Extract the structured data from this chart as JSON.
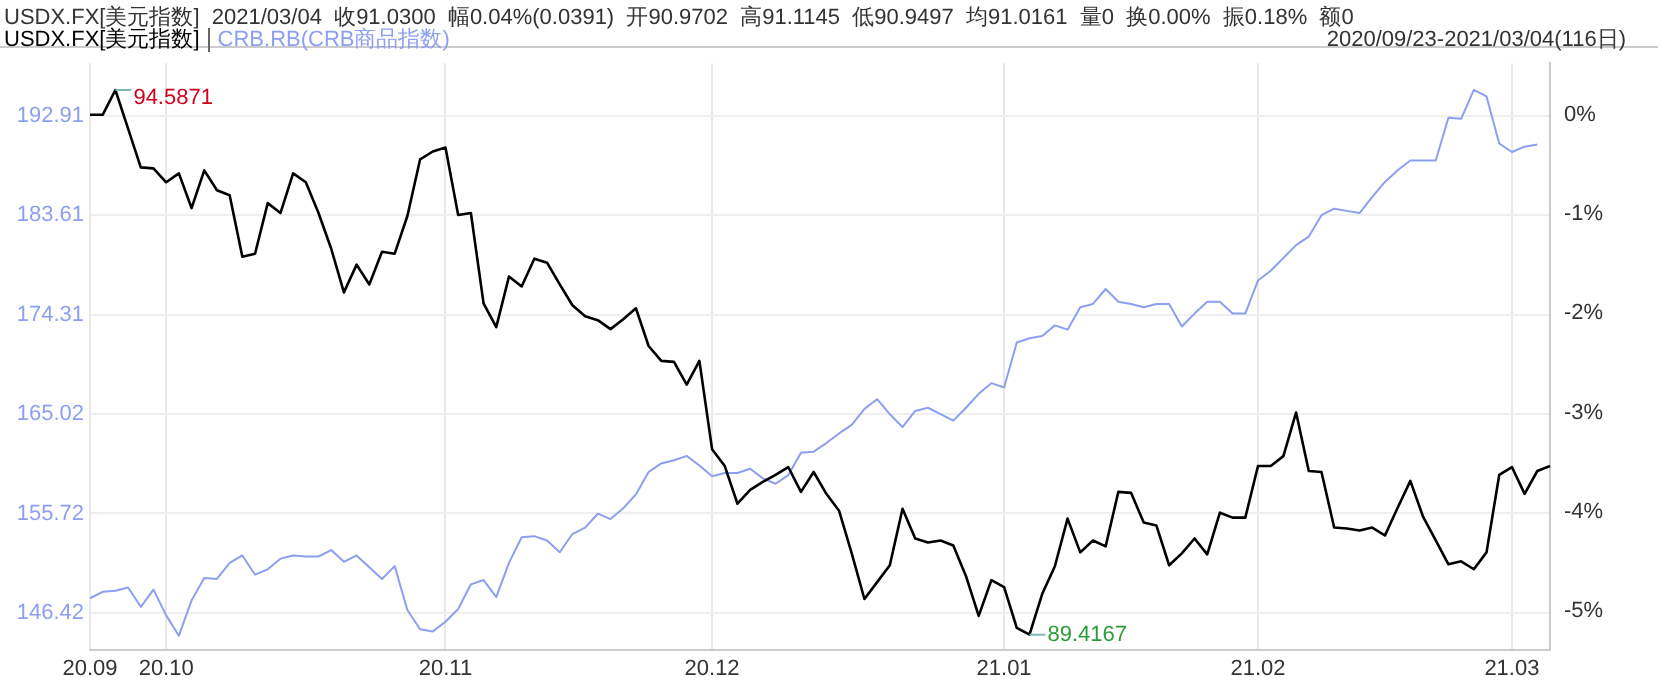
{
  "chart_data": {
    "type": "line",
    "title": "USDX.FX[美元指数]  2021/03/04  收91.0300  幅0.04%(0.0391)  开90.9702  高91.1145  低90.9497  均91.0161  量0  换0.00%  振0.18%  额0",
    "subtitle": "2020/09/23-2021/03/04(116日)",
    "annotations": [
      "94.5871",
      "89.4167"
    ],
    "categories": [
      "20.09",
      null,
      null,
      null,
      null,
      null,
      "20.10",
      null,
      null,
      null,
      null,
      null,
      null,
      null,
      null,
      null,
      null,
      null,
      null,
      null,
      null,
      null,
      null,
      null,
      null,
      null,
      null,
      null,
      "20.11",
      null,
      null,
      null,
      null,
      null,
      null,
      null,
      null,
      null,
      null,
      null,
      null,
      null,
      null,
      null,
      null,
      null,
      null,
      null,
      null,
      "20.12",
      null,
      null,
      null,
      null,
      null,
      null,
      null,
      null,
      null,
      null,
      null,
      null,
      null,
      null,
      null,
      null,
      null,
      null,
      null,
      null,
      null,
      null,
      "21.01",
      null,
      null,
      null,
      null,
      null,
      null,
      null,
      null,
      null,
      null,
      null,
      null,
      null,
      null,
      null,
      null,
      null,
      null,
      null,
      "21.02",
      null,
      null,
      null,
      null,
      null,
      null,
      null,
      null,
      null,
      null,
      null,
      null,
      null,
      null,
      null,
      null,
      null,
      null,
      null,
      "21.03",
      null,
      null,
      null
    ],
    "series": [
      {
        "name": "USDX.FX[美元指数]",
        "color": "#000000",
        "axis": "y2",
        "values": [
          0,
          0,
          0.25,
          -0.14,
          -0.53,
          -0.54,
          -0.68,
          -0.59,
          -0.94,
          -0.56,
          -0.76,
          -0.81,
          -1.43,
          -1.4,
          -0.89,
          -0.99,
          -0.59,
          -0.68,
          -0.99,
          -1.35,
          -1.79,
          -1.51,
          -1.71,
          -1.38,
          -1.4,
          -1.02,
          -0.45,
          -0.37,
          -0.33,
          -1.01,
          -0.99,
          -1.9,
          -2.14,
          -1.63,
          -1.73,
          -1.45,
          -1.49,
          -1.71,
          -1.92,
          -2.03,
          -2.07,
          -2.16,
          -2.06,
          -1.95,
          -2.33,
          -2.48,
          -2.49,
          -2.72,
          -2.48,
          -3.37,
          -3.54,
          -3.92,
          -3.78,
          -3.7,
          -3.63,
          -3.55,
          -3.8,
          -3.6,
          -3.82,
          -3.99,
          -4.42,
          -4.88,
          -4.71,
          -4.54,
          -3.97,
          -4.27,
          -4.31,
          -4.29,
          -4.34,
          -4.65,
          -5.05,
          -4.69,
          -4.76,
          -5.17,
          -5.24,
          -4.83,
          -4.55,
          -4.07,
          -4.41,
          -4.29,
          -4.35,
          -3.8,
          -3.81,
          -4.11,
          -4.14,
          -4.54,
          -4.42,
          -4.27,
          -4.43,
          -4.01,
          -4.06,
          -4.06,
          -3.54,
          -3.54,
          -3.44,
          -3.0,
          -3.59,
          -3.6,
          -4.16,
          -4.17,
          -4.19,
          -4.16,
          -4.24,
          -3.96,
          -3.69,
          -4.05,
          -4.29,
          -4.53,
          -4.5,
          -4.58,
          -4.41,
          -3.63,
          -3.55,
          -3.82,
          -3.59,
          -3.54
        ]
      },
      {
        "name": "CRB.RB(CRB商品指数)",
        "color": "#8c9ff0",
        "values": [
          147.8,
          148.4,
          148.5,
          148.8,
          147.0,
          148.6,
          146.2,
          144.3,
          147.6,
          149.7,
          149.6,
          151.1,
          151.8,
          150.0,
          150.5,
          151.5,
          151.8,
          151.7,
          151.7,
          152.3,
          151.2,
          151.8,
          150.7,
          149.6,
          150.8,
          146.7,
          144.9,
          144.7,
          145.6,
          146.8,
          149.1,
          149.5,
          147.9,
          151.1,
          153.5,
          153.6,
          153.2,
          152.1,
          153.8,
          154.4,
          155.7,
          155.2,
          156.2,
          157.5,
          159.6,
          160.4,
          160.7,
          161.1,
          160.2,
          159.2,
          159.5,
          159.5,
          159.9,
          159.0,
          158.5,
          159.3,
          161.4,
          161.5,
          162.3,
          163.2,
          164.0,
          165.5,
          166.4,
          165.0,
          163.8,
          165.3,
          165.6,
          165.0,
          164.4,
          165.6,
          166.9,
          167.9,
          167.5,
          171.7,
          172.1,
          172.3,
          173.3,
          172.9,
          175.0,
          175.3,
          176.7,
          175.5,
          175.3,
          175.0,
          175.3,
          175.3,
          173.2,
          174.4,
          175.5,
          175.5,
          174.4,
          174.4,
          177.5,
          178.4,
          179.6,
          180.8,
          181.6,
          183.6,
          184.2,
          184.0,
          183.8,
          185.3,
          186.7,
          187.8,
          188.7,
          188.7,
          188.7,
          192.7,
          192.6,
          195.3,
          194.7,
          190.3,
          189.5,
          190.0,
          190.2,
          null
        ]
      }
    ],
    "ylim": [
      143.0,
      197.8
    ],
    "yticks": [
      146.42,
      155.72,
      165.02,
      174.31,
      183.61,
      192.91
    ],
    "y2lim": [
      -5.39,
      0.52
    ],
    "y2ticks": [
      {
        "value": 0,
        "label": "0%"
      },
      {
        "value": -1,
        "label": "-1%"
      },
      {
        "value": -2,
        "label": "-2%"
      },
      {
        "value": -3,
        "label": "-3%"
      },
      {
        "value": -4,
        "label": "-4%"
      },
      {
        "value": -5,
        "label": "-5%"
      }
    ],
    "grid": true,
    "legend": "top left"
  }
}
